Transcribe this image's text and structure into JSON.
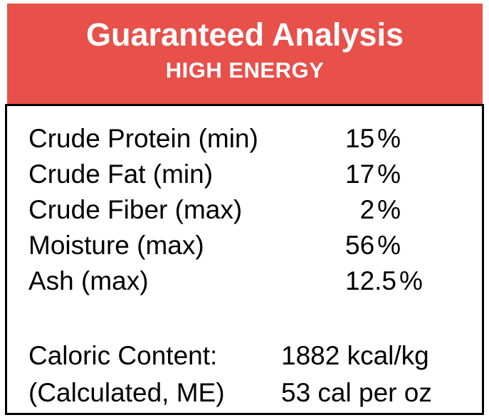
{
  "header": {
    "title": "Guaranteed Analysis",
    "subtitle": "HIGH ENERGY",
    "background_color": "#e8504a",
    "text_color": "#ffffff"
  },
  "nutrients": [
    {
      "label": "Crude Protein (min)",
      "value": "15",
      "unit": "%"
    },
    {
      "label": "Crude Fat (min)",
      "value": "17",
      "unit": "%"
    },
    {
      "label": "Crude Fiber (max)",
      "value": "2",
      "unit": "%"
    },
    {
      "label": "Moisture (max)",
      "value": "56",
      "unit": "%"
    },
    {
      "label": "Ash (max)",
      "value": "12.5",
      "unit": "%"
    }
  ],
  "caloric": [
    {
      "label": "Caloric Content:",
      "value": "1882 kcal/kg"
    },
    {
      "label": "(Calculated, ME)",
      "value": "53 cal per oz"
    }
  ],
  "border_color": "#000000"
}
